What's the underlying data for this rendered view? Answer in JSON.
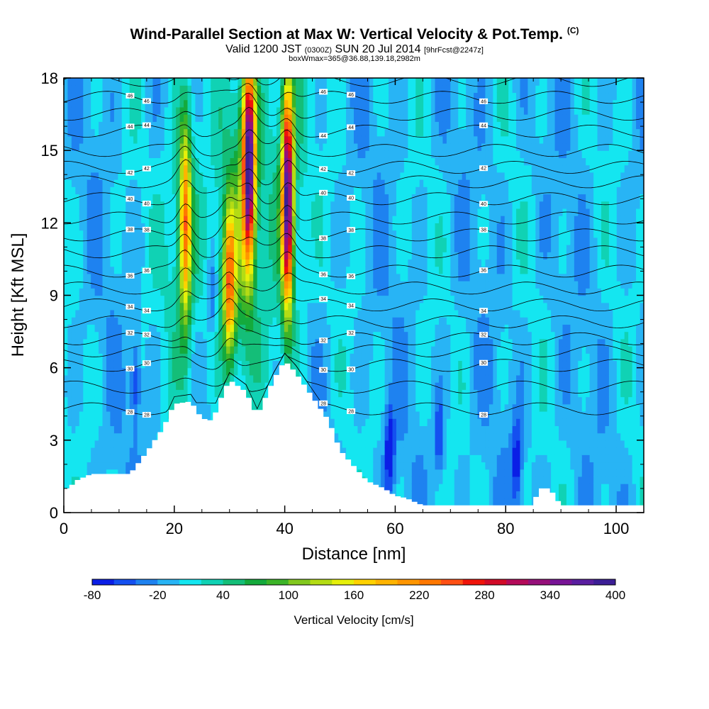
{
  "chart_data": {
    "type": "heatmap",
    "title": "Wind-Parallel Section at Max W: Vertical Velocity & Pot.Temp.",
    "title_mark": "(C)",
    "subtitle_parts": [
      "Valid 1200 JST ",
      "(0300Z)",
      " SUN 20 Jul 2014 ",
      "[9hrFcst@2247z]"
    ],
    "subtitle2": "boxWmax=365@36.88,139.18,2982m",
    "xlabel": "Distance [nm]",
    "ylabel": "Height [Kft MSL]",
    "xlim": [
      0,
      105
    ],
    "ylim": [
      0,
      18
    ],
    "x_ticks": [
      0,
      20,
      40,
      60,
      80,
      100
    ],
    "x_tick_labels": [
      "0",
      "20",
      "40",
      "60",
      "80",
      "100"
    ],
    "y_ticks": [
      0,
      3,
      6,
      9,
      12,
      15,
      18
    ],
    "y_tick_labels": [
      "0",
      "3",
      "6",
      "9",
      "12",
      "15",
      "18"
    ],
    "colorbar": {
      "title": "Vertical Velocity [cm/s]",
      "min": -80,
      "max": 400,
      "step": 20,
      "labels": [
        "-80",
        "-20",
        "40",
        "100",
        "160",
        "220",
        "280",
        "340",
        "400"
      ],
      "colors": [
        "#0a1ee6",
        "#1450f0",
        "#1e82f0",
        "#28b4f5",
        "#14e6f0",
        "#10d2b4",
        "#14be78",
        "#14aa3c",
        "#3cb428",
        "#82c81e",
        "#b4dc14",
        "#e6f00a",
        "#ffd200",
        "#ffb400",
        "#ff9600",
        "#ff7800",
        "#ff5014",
        "#f0140a",
        "#d20a28",
        "#b40a5a",
        "#96107a",
        "#781496",
        "#5a1ea0",
        "#3c1e96"
      ]
    },
    "updrafts": [
      {
        "x": 22,
        "z_center": 12.0,
        "half_width_nm": 1.0,
        "half_height_kft": 4.0,
        "peak": 200
      },
      {
        "x": 30,
        "z_center": 9.5,
        "half_width_nm": 1.0,
        "half_height_kft": 3.0,
        "peak": 180
      },
      {
        "x": 33.5,
        "z_center": 14.5,
        "half_width_nm": 1.1,
        "half_height_kft": 4.0,
        "peak": 365
      },
      {
        "x": 40.5,
        "z_center": 13.0,
        "half_width_nm": 1.0,
        "half_height_kft": 4.5,
        "peak": 360
      }
    ],
    "downdrafts": [
      {
        "x": 13,
        "z_center": 5.5,
        "peak": -60
      },
      {
        "x": 27,
        "z_center": 9.0,
        "peak": -50
      },
      {
        "x": 59,
        "z_center": 2.5,
        "peak": -80
      },
      {
        "x": 68,
        "z_center": 3.0,
        "peak": -60
      },
      {
        "x": 82,
        "z_center": 2.0,
        "peak": -70
      }
    ],
    "terrain": {
      "x": [
        0,
        1,
        2,
        5,
        8,
        12,
        15,
        18,
        20,
        23,
        25,
        27,
        28,
        30,
        33,
        35,
        38,
        40,
        42,
        45,
        48,
        50,
        53,
        55,
        58,
        60,
        62,
        65,
        70,
        75,
        80,
        85,
        86,
        88,
        90,
        92,
        100,
        105
      ],
      "height": [
        1.0,
        1.0,
        1.3,
        1.6,
        1.6,
        1.6,
        2.5,
        3.5,
        4.5,
        4.6,
        3.9,
        3.8,
        4.5,
        5.5,
        5.0,
        4.0,
        5.5,
        6.3,
        5.8,
        4.8,
        3.8,
        2.6,
        1.8,
        1.3,
        1.0,
        0.7,
        0.6,
        0.3,
        0.3,
        0.3,
        0.3,
        0.3,
        1.0,
        1.0,
        0.3,
        0.3,
        0.3,
        0.3
      ]
    },
    "theta_levels": [
      28,
      29,
      30,
      31,
      32,
      33,
      34,
      35,
      36,
      37,
      38,
      39,
      40,
      41,
      42,
      43,
      44,
      45,
      46,
      47,
      48
    ],
    "theta_levels_printed": [
      28,
      30,
      32,
      34,
      36,
      38,
      40,
      42,
      44,
      46
    ],
    "theta_label_x": [
      12,
      15,
      47,
      52,
      76
    ],
    "theta_heights_kft": [
      4.3,
      5.2,
      6.1,
      6.7,
      7.2,
      7.9,
      8.6,
      9.3,
      10.0,
      10.8,
      11.5,
      12.2,
      13.0,
      13.7,
      14.3,
      15.0,
      15.8,
      16.5,
      17.2,
      17.9,
      18.4
    ]
  }
}
